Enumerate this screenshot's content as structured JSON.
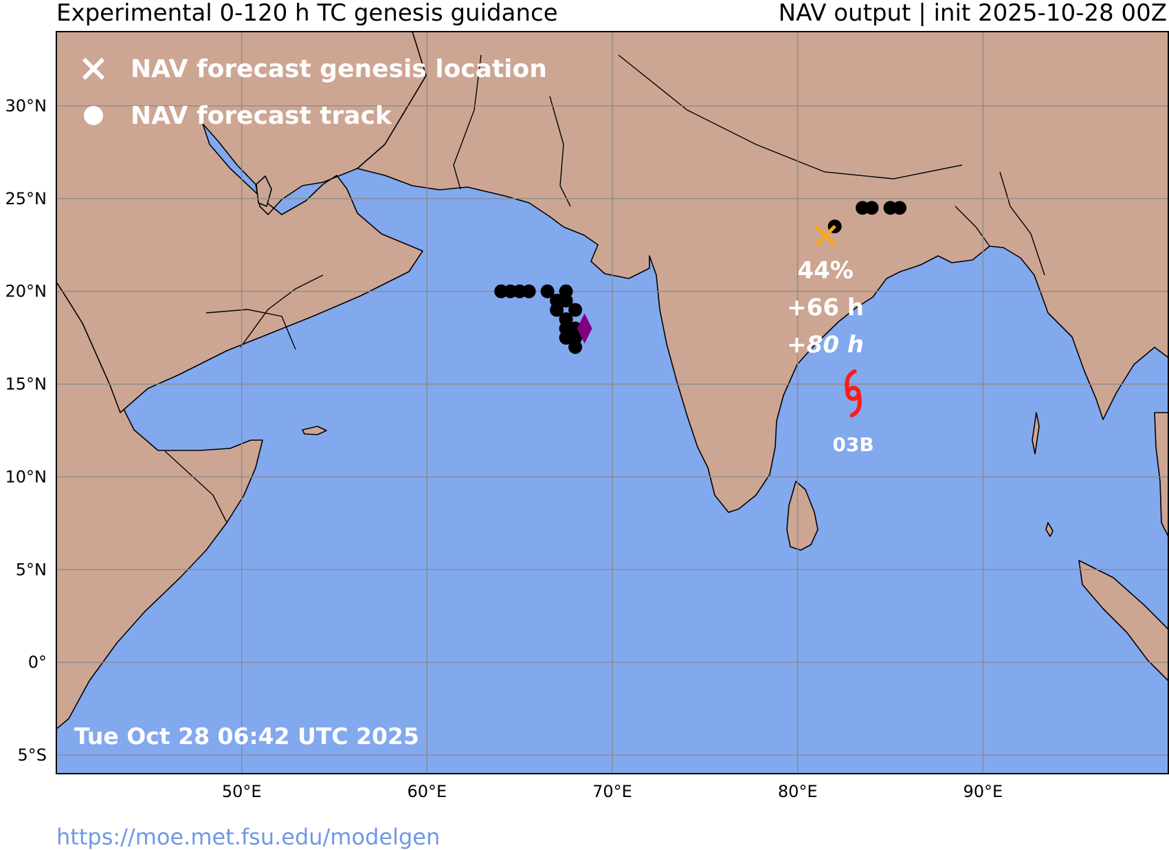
{
  "header": {
    "left_title": "Experimental 0-120 h TC genesis guidance",
    "right_title": "NAV output | init 2025-10-28 00Z"
  },
  "colors": {
    "ocean": "#82a8ee",
    "land": "#cda693",
    "grid": "#8a8a8a",
    "track": "#000000",
    "genesis_marker": "#f5a623",
    "storm_symbol": "#ff1a1a",
    "storm_position": "#800080",
    "annotation_text": "#ffffff",
    "url_text": "#6f98e6"
  },
  "map": {
    "lon_range": [
      40,
      100
    ],
    "lat_range": [
      -6,
      34
    ],
    "lon_ticks": [
      {
        "value": 50,
        "label": "50°E"
      },
      {
        "value": 60,
        "label": "60°E"
      },
      {
        "value": 70,
        "label": "70°E"
      },
      {
        "value": 80,
        "label": "80°E"
      },
      {
        "value": 90,
        "label": "90°E"
      }
    ],
    "lat_ticks": [
      {
        "value": 30,
        "label": "30°N"
      },
      {
        "value": 25,
        "label": "25°N"
      },
      {
        "value": 20,
        "label": "20°N"
      },
      {
        "value": 15,
        "label": "15°N"
      },
      {
        "value": 10,
        "label": "10°N"
      },
      {
        "value": 5,
        "label": "5°N"
      },
      {
        "value": 0,
        "label": "0°"
      },
      {
        "value": -5,
        "label": "5°S"
      }
    ],
    "grid": true
  },
  "legend": {
    "placement": "top-left",
    "items": [
      {
        "icon": "x-icon",
        "label": "NAV forecast genesis location"
      },
      {
        "icon": "dot-icon",
        "label": "NAV forecast track"
      }
    ]
  },
  "arabian_sea_track": {
    "points": [
      {
        "lon": 64.0,
        "lat": 20.0
      },
      {
        "lon": 64.5,
        "lat": 20.0
      },
      {
        "lon": 65.0,
        "lat": 20.0
      },
      {
        "lon": 65.5,
        "lat": 20.0
      },
      {
        "lon": 66.5,
        "lat": 20.0
      },
      {
        "lon": 67.5,
        "lat": 20.0
      },
      {
        "lon": 67.0,
        "lat": 19.5
      },
      {
        "lon": 67.5,
        "lat": 19.5
      },
      {
        "lon": 67.0,
        "lat": 19.0
      },
      {
        "lon": 68.0,
        "lat": 19.0
      },
      {
        "lon": 67.5,
        "lat": 18.5
      },
      {
        "lon": 67.5,
        "lat": 18.0
      },
      {
        "lon": 68.0,
        "lat": 18.0
      },
      {
        "lon": 67.5,
        "lat": 17.5
      },
      {
        "lon": 68.0,
        "lat": 17.5
      },
      {
        "lon": 68.0,
        "lat": 17.0
      }
    ],
    "current_position": {
      "lon": 68.5,
      "lat": 18.0
    }
  },
  "bay_track": {
    "points": [
      {
        "lon": 82.0,
        "lat": 23.5
      },
      {
        "lon": 83.5,
        "lat": 24.5
      },
      {
        "lon": 84.0,
        "lat": 24.5
      },
      {
        "lon": 85.0,
        "lat": 24.5
      },
      {
        "lon": 85.5,
        "lat": 24.5
      }
    ]
  },
  "genesis": {
    "lon": 81.5,
    "lat": 23.0,
    "probability": "44%",
    "lead_time": "+66 h",
    "lead_time_alt": "+80 h"
  },
  "storm": {
    "name": "03B",
    "lon": 83.0,
    "lat": 14.5
  },
  "timestamp": "Tue Oct 28 06:42 UTC 2025",
  "footer": {
    "url": "https://moe.met.fsu.edu/modelgen"
  }
}
